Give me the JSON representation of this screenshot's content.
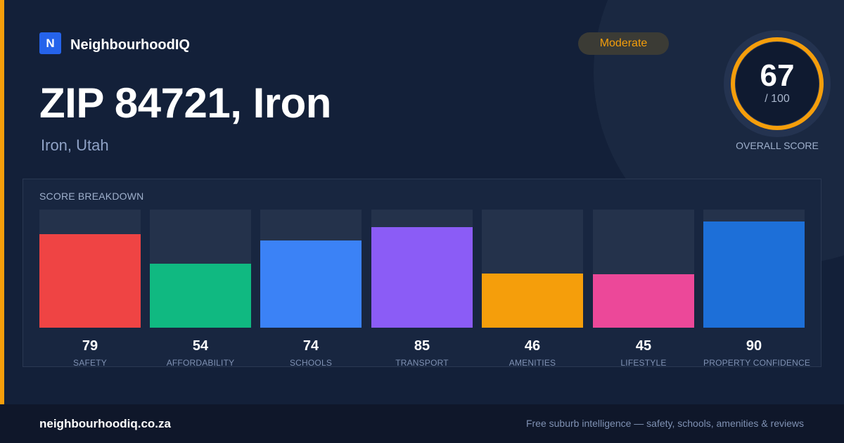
{
  "brand": {
    "logo_letter": "N",
    "name": "NeighbourhoodIQ",
    "color": "#2563eb"
  },
  "rating": {
    "label": "Moderate",
    "color": "#f59e0b"
  },
  "location": {
    "title": "ZIP 84721, Iron",
    "subtitle": "Iron, Utah"
  },
  "overall_score": {
    "value": "67",
    "max": "/ 100",
    "label": "OVERALL SCORE",
    "ring_color": "#f59e0b",
    "fraction": 0.67
  },
  "breakdown": {
    "heading": "SCORE BREAKDOWN",
    "items": [
      {
        "value": "79",
        "label": "SAFETY",
        "color": "#ef4444",
        "score": 79
      },
      {
        "value": "54",
        "label": "AFFORDABILITY",
        "color": "#10b981",
        "score": 54
      },
      {
        "value": "74",
        "label": "SCHOOLS",
        "color": "#3b82f6",
        "score": 74
      },
      {
        "value": "85",
        "label": "TRANSPORT",
        "color": "#8b5cf6",
        "score": 85
      },
      {
        "value": "46",
        "label": "AMENITIES",
        "color": "#f59e0b",
        "score": 46
      },
      {
        "value": "45",
        "label": "LIFESTYLE",
        "color": "#ec4899",
        "score": 45
      },
      {
        "value": "90",
        "label": "PROPERTY CONFIDENCE",
        "color": "#1d6fd8",
        "score": 90
      }
    ]
  },
  "footer": {
    "site": "neighbourhoodiq.co.za",
    "tagline": "Free suburb intelligence — safety, schools, amenities & reviews"
  },
  "theme": {
    "accent_bar": "#f59e0b",
    "background": "#132039"
  }
}
